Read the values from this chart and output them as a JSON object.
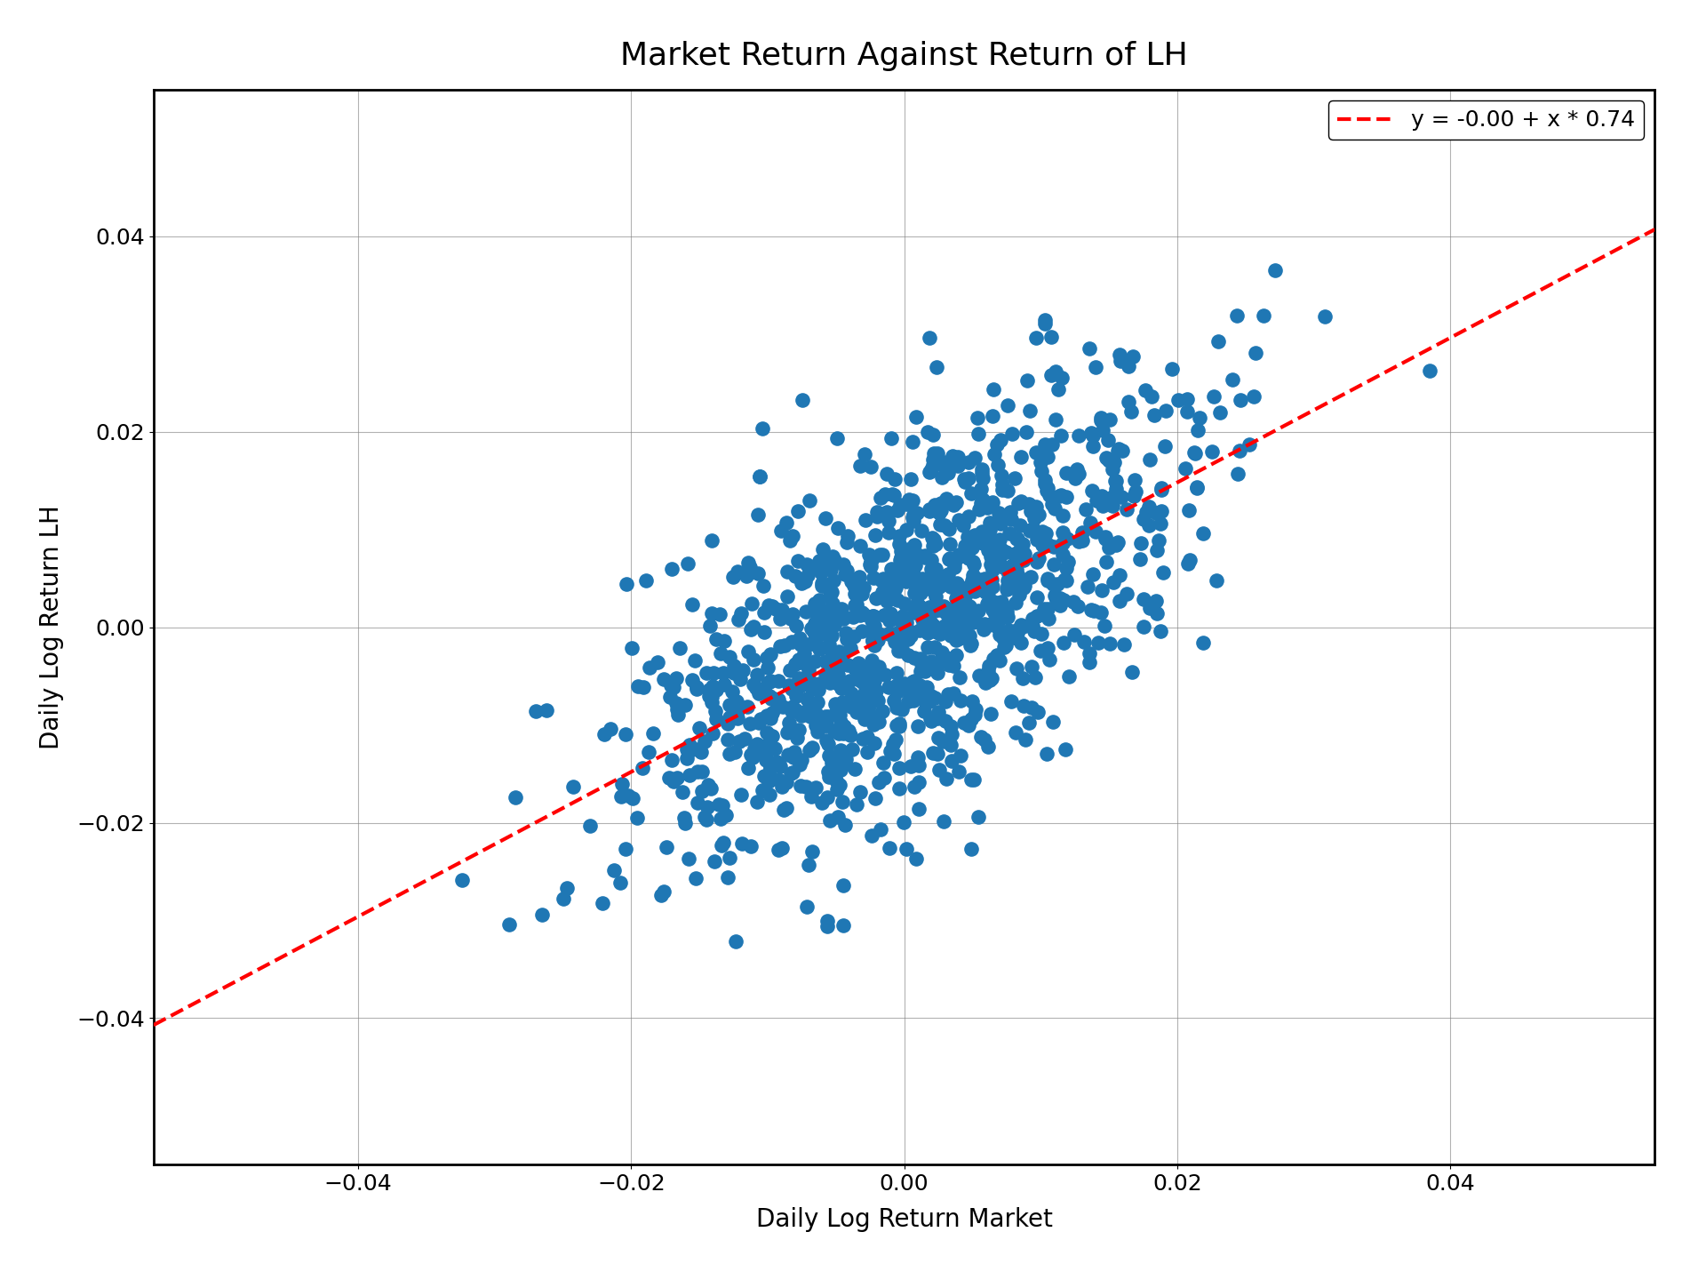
{
  "title": "Market Return Against Return of LH",
  "xlabel": "Daily Log Return Market",
  "ylabel": "Daily Log Return LH",
  "intercept": 0.0,
  "slope": 0.74,
  "legend_label": "y = -0.00 + x * 0.74",
  "xlim": [
    -0.055,
    0.055
  ],
  "ylim": [
    -0.055,
    0.055
  ],
  "xticks": [
    -0.04,
    -0.02,
    0.0,
    0.02,
    0.04
  ],
  "yticks": [
    -0.04,
    -0.02,
    0.0,
    0.02,
    0.04
  ],
  "scatter_color": "#1f77b4",
  "line_color": "red",
  "dot_size": 120,
  "seed": 42,
  "n_points": 1200,
  "market_std": 0.01,
  "noise_std": 0.009,
  "title_fontsize": 26,
  "label_fontsize": 20,
  "tick_fontsize": 18,
  "legend_fontsize": 18
}
